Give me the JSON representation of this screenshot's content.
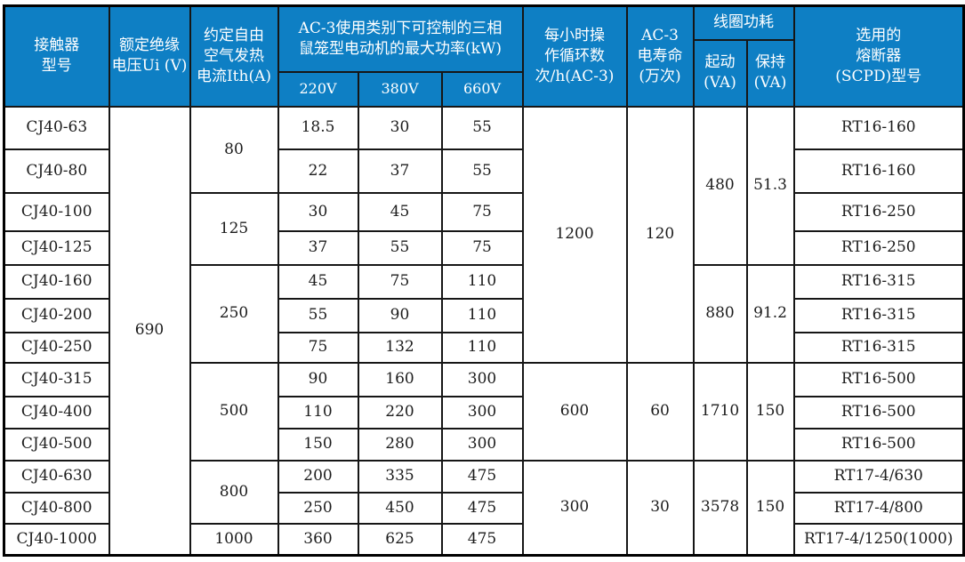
{
  "colors": {
    "header_bg": "#0e7fc4",
    "header_fg": "#ffffff",
    "grid_line": "#161616",
    "body_text": "#1c1c1c"
  },
  "table": {
    "header": {
      "model": "接触器\n型号",
      "rated_voltage": "额定绝缘\n电压Ui (V)",
      "thermal_current": "约定自由\n空气发热\n电流Ith(A)",
      "ac3_power_group": "AC-3使用类别下可控制的三相\n鼠笼型电动机的最大功率(kW)",
      "v220": "220V",
      "v380": "380V",
      "v660": "660V",
      "cycles_per_hour": "每小时操\n作循环数\n次/h(AC-3)",
      "electrical_life": "AC-3\n电寿命\n(万次)",
      "coil_power_group": "线圈功耗",
      "coil_start": "起动\n(VA)",
      "coil_hold": "保持\n(VA)",
      "fuse": "选用的\n熔断器\n(SCPD)型号"
    },
    "rows": [
      [
        {
          "t": "CJ40-63"
        },
        {
          "t": "690",
          "rs": 13
        },
        {
          "t": "80",
          "rs": 2
        },
        {
          "t": "18.5"
        },
        {
          "t": "30"
        },
        {
          "t": "55"
        },
        {
          "t": "1200",
          "rs": 7
        },
        {
          "t": "120",
          "rs": 7
        },
        {
          "t": "480",
          "rs": 4
        },
        {
          "t": "51.3",
          "rs": 4
        },
        {
          "t": "RT16-160"
        }
      ],
      [
        {
          "t": "CJ40-80"
        },
        {
          "t": "22"
        },
        {
          "t": "37"
        },
        {
          "t": "55"
        },
        {
          "t": "RT16-160"
        }
      ],
      [
        {
          "t": "CJ40-100"
        },
        {
          "t": "125",
          "rs": 2
        },
        {
          "t": "30"
        },
        {
          "t": "45"
        },
        {
          "t": "75"
        },
        {
          "t": "RT16-250"
        }
      ],
      [
        {
          "t": "CJ40-125"
        },
        {
          "t": "37"
        },
        {
          "t": "55"
        },
        {
          "t": "75"
        },
        {
          "t": "RT16-250"
        }
      ],
      [
        {
          "t": "CJ40-160"
        },
        {
          "t": "250",
          "rs": 3
        },
        {
          "t": "45"
        },
        {
          "t": "75"
        },
        {
          "t": "110"
        },
        {
          "t": "880",
          "rs": 3
        },
        {
          "t": "91.2",
          "rs": 3
        },
        {
          "t": "RT16-315"
        }
      ],
      [
        {
          "t": "CJ40-200"
        },
        {
          "t": "55"
        },
        {
          "t": "90"
        },
        {
          "t": "110"
        },
        {
          "t": "RT16-315"
        }
      ],
      [
        {
          "t": "CJ40-250"
        },
        {
          "t": "75"
        },
        {
          "t": "132"
        },
        {
          "t": "110"
        },
        {
          "t": "RT16-315"
        }
      ],
      [
        {
          "t": "CJ40-315"
        },
        {
          "t": "500",
          "rs": 3
        },
        {
          "t": "90"
        },
        {
          "t": "160"
        },
        {
          "t": "300"
        },
        {
          "t": "600",
          "rs": 3
        },
        {
          "t": "60",
          "rs": 3
        },
        {
          "t": "1710",
          "rs": 3
        },
        {
          "t": "150",
          "rs": 3
        },
        {
          "t": "RT16-500"
        }
      ],
      [
        {
          "t": "CJ40-400"
        },
        {
          "t": "110"
        },
        {
          "t": "220"
        },
        {
          "t": "300"
        },
        {
          "t": "RT16-500"
        }
      ],
      [
        {
          "t": "CJ40-500"
        },
        {
          "t": "150"
        },
        {
          "t": "280"
        },
        {
          "t": "300"
        },
        {
          "t": "RT16-500"
        }
      ],
      [
        {
          "t": "CJ40-630"
        },
        {
          "t": "800",
          "rs": 2
        },
        {
          "t": "200"
        },
        {
          "t": "335"
        },
        {
          "t": "475"
        },
        {
          "t": "300",
          "rs": 3
        },
        {
          "t": "30",
          "rs": 3
        },
        {
          "t": "3578",
          "rs": 3
        },
        {
          "t": "150",
          "rs": 3
        },
        {
          "t": "RT17-4/630"
        }
      ],
      [
        {
          "t": "CJ40-800"
        },
        {
          "t": "250"
        },
        {
          "t": "450"
        },
        {
          "t": "475"
        },
        {
          "t": "RT17-4/800"
        }
      ],
      [
        {
          "t": "CJ40-1000"
        },
        {
          "t": "1000"
        },
        {
          "t": "360"
        },
        {
          "t": "625"
        },
        {
          "t": "475"
        },
        {
          "t": "RT17-4/1250(1000)"
        }
      ]
    ]
  }
}
